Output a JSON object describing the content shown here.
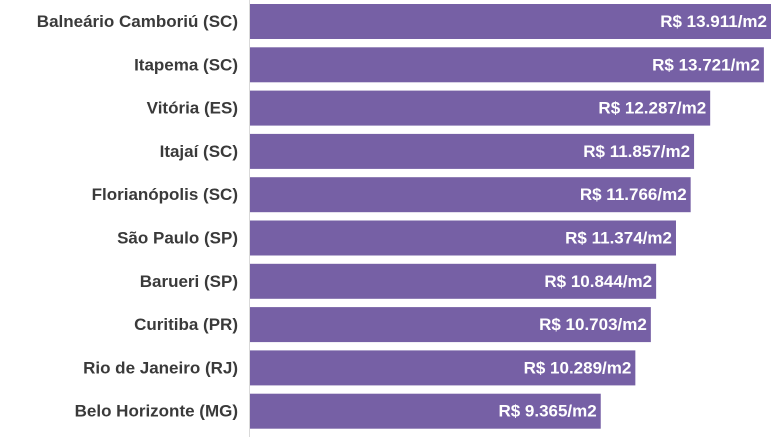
{
  "chart_data": {
    "type": "bar",
    "orientation": "horizontal",
    "categories": [
      "Balneário Camboriú (SC)",
      "Itapema (SC)",
      "Vitória (ES)",
      "Itajaí (SC)",
      "Florianópolis (SC)",
      "São Paulo (SP)",
      "Barueri (SP)",
      "Curitiba (PR)",
      "Rio de Janeiro (RJ)",
      "Belo Horizonte (MG)"
    ],
    "values": [
      13911,
      13721,
      12287,
      11857,
      11766,
      11374,
      10844,
      10703,
      10289,
      9365
    ],
    "data_labels": [
      "R$ 13.911/m2",
      "R$ 13.721/m2",
      "R$ 12.287/m2",
      "R$ 11.857/m2",
      "R$ 11.766/m2",
      "R$ 11.374/m2",
      "R$ 10.844/m2",
      "R$ 10.703/m2",
      "R$ 10.289/m2",
      "R$ 9.365/m2"
    ],
    "xlim": [
      0,
      13911
    ],
    "grid": false,
    "bar_color": "#7660a5",
    "axis_color": "#d9d9d9"
  }
}
